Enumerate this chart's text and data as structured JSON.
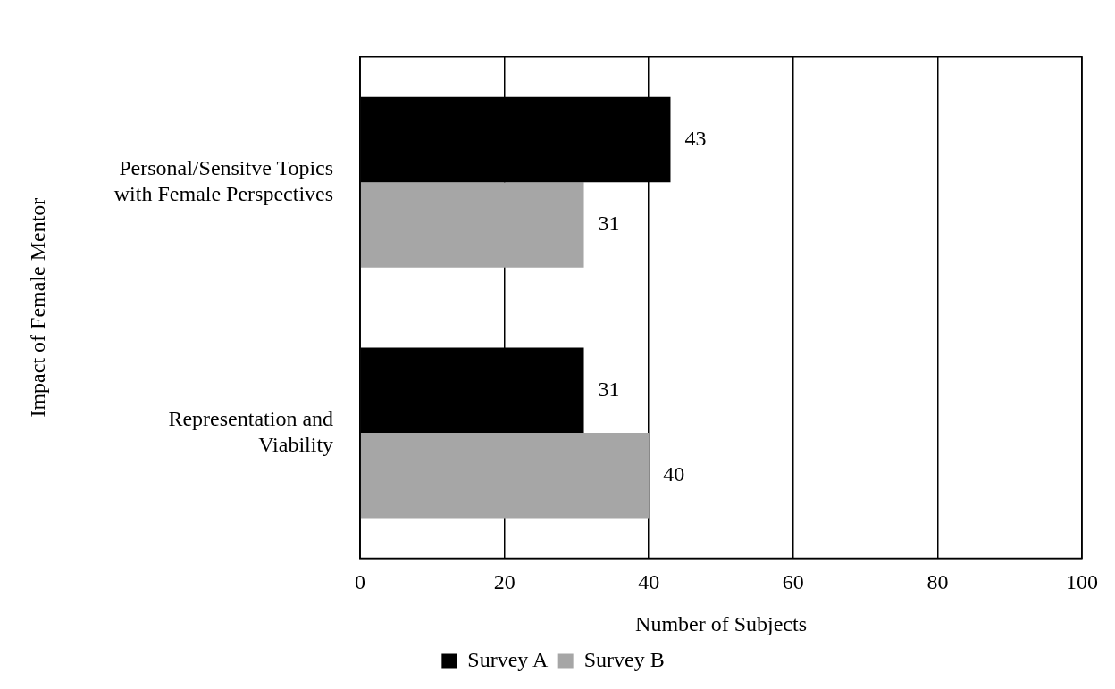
{
  "chart_data": {
    "type": "bar",
    "orientation": "horizontal",
    "ylabel": "Impact of Female Mentor",
    "xlabel": "Number of Subjects",
    "categories": [
      "Personal/Sensitve Topics with Female Perspectives",
      "Representation and Viability"
    ],
    "series": [
      {
        "name": "Survey A",
        "color": "#000000",
        "values": [
          43,
          31
        ]
      },
      {
        "name": "Survey B",
        "color": "#a6a6a6",
        "values": [
          31,
          40
        ]
      }
    ],
    "xlim": [
      0,
      100
    ],
    "xticks": [
      0,
      20,
      40,
      60,
      80,
      100
    ],
    "grid": "x",
    "legend": "bottom",
    "data_labels": true
  }
}
